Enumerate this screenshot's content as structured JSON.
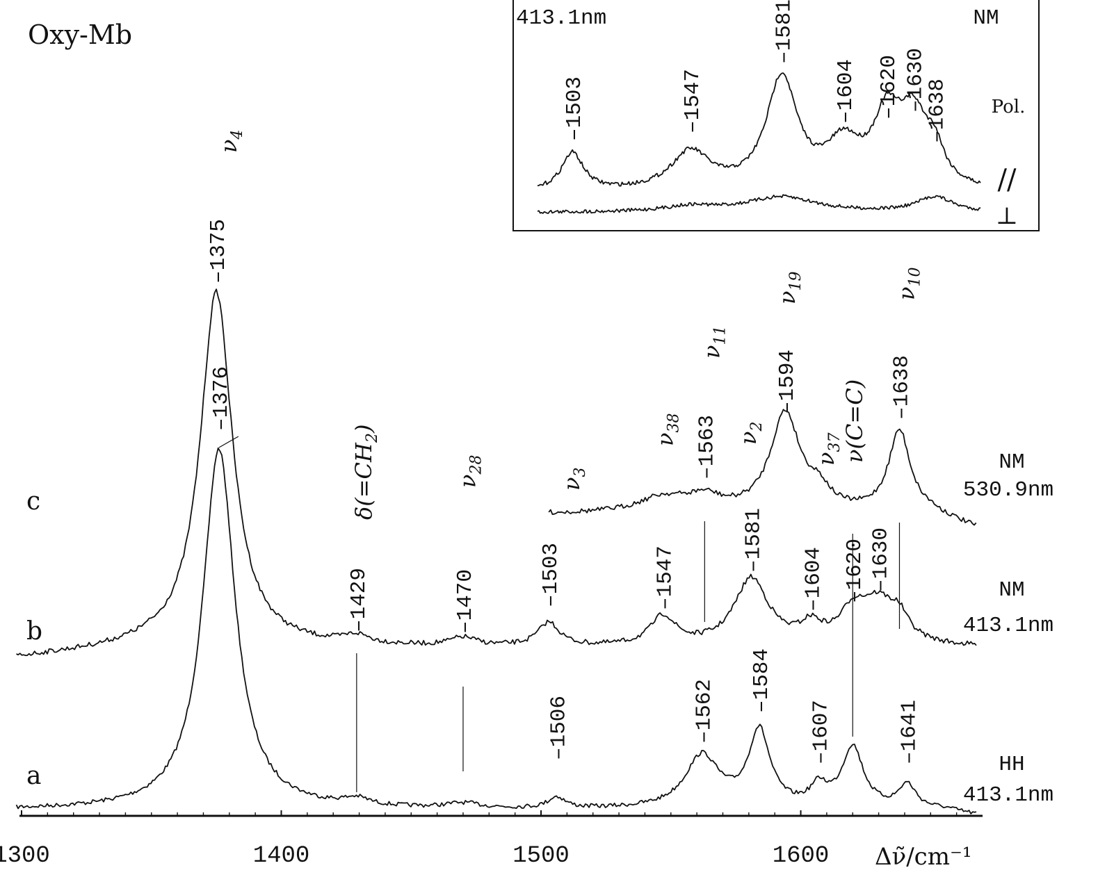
{
  "chart_data": {
    "type": "line",
    "title": "Oxy-Mb",
    "xlabel": "Δν̃/cm⁻¹",
    "ylabel": "",
    "xlim": [
      1300,
      1670
    ],
    "x_ticks": [
      "1300",
      "1400",
      "1500",
      "1600"
    ],
    "grid": false,
    "series": [
      {
        "name": "a",
        "label": "HH",
        "label2": "413.1nm",
        "peaks": [
          1376,
          1429,
          1470,
          1506,
          1562,
          1584,
          1607,
          1620,
          1641
        ],
        "peak_labels": [
          {
            "x": 1376,
            "text": "1376"
          },
          {
            "x": 1506,
            "text": "1506"
          },
          {
            "x": 1562,
            "text": "1562"
          },
          {
            "x": 1584,
            "text": "1584"
          },
          {
            "x": 1607,
            "text": "1607"
          },
          {
            "x": 1641,
            "text": "1641"
          }
        ]
      },
      {
        "name": "b",
        "label": "NM",
        "label2": "413.1nm",
        "peaks": [
          1375,
          1429,
          1470,
          1503,
          1547,
          1563,
          1581,
          1604,
          1620,
          1630,
          1638
        ],
        "peak_labels": [
          {
            "x": 1375,
            "text": "1375"
          },
          {
            "x": 1429,
            "text": "1429"
          },
          {
            "x": 1470,
            "text": "1470"
          },
          {
            "x": 1503,
            "text": "1503"
          },
          {
            "x": 1547,
            "text": "1547"
          },
          {
            "x": 1581,
            "text": "1581"
          },
          {
            "x": 1604,
            "text": "1604"
          },
          {
            "x": 1620,
            "text": "1620"
          },
          {
            "x": 1630,
            "text": "1630"
          }
        ]
      },
      {
        "name": "c",
        "label": "NM",
        "label2": "530.9nm",
        "peaks": [
          1563,
          1594,
          1638
        ],
        "peak_labels": [
          {
            "x": 1563,
            "text": "1563"
          },
          {
            "x": 1594,
            "text": "1594"
          },
          {
            "x": 1638,
            "text": "1638"
          }
        ]
      }
    ],
    "mode_labels": [
      {
        "x": 1375,
        "base": "ν",
        "sub": "4"
      },
      {
        "x": 1429,
        "base": "δ(=CH",
        "sub": "2",
        "tail": ")"
      },
      {
        "x": 1470,
        "base": "ν",
        "sub": "28"
      },
      {
        "x": 1506,
        "base": "ν",
        "sub": "3"
      },
      {
        "x": 1547,
        "base": "ν",
        "sub": "38"
      },
      {
        "x": 1563,
        "base": "ν",
        "sub": "11"
      },
      {
        "x": 1581,
        "base": "ν",
        "sub": "2"
      },
      {
        "x": 1594,
        "base": "ν",
        "sub": "19"
      },
      {
        "x": 1607,
        "base": "ν",
        "sub": "37"
      },
      {
        "x": 1620,
        "base": "ν(C=C)"
      },
      {
        "x": 1638,
        "base": "ν",
        "sub": "10"
      }
    ],
    "inset": {
      "title": "413.1nm",
      "label": "NM",
      "pol_label": "Pol.",
      "par_symbol": "//",
      "perp_symbol": "⊥",
      "xlim": [
        1490,
        1655
      ],
      "peak_labels": [
        "1503",
        "1547",
        "1581",
        "1604",
        "1620",
        "1630",
        "1638"
      ]
    }
  }
}
